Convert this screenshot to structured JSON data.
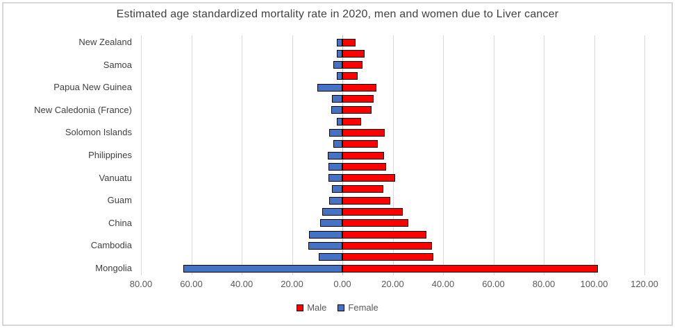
{
  "title": "Estimated age standardized mortality rate in 2020, men and women due to Liver cancer",
  "legend": {
    "male_label": "Male",
    "female_label": "Female"
  },
  "colors": {
    "male": "#fe0000",
    "female": "#4472c4",
    "bar_border": "#000000",
    "gridline": "#d9d9d9",
    "axis_line": "#c0c0c0",
    "label_text": "#595959",
    "title_text": "#404040",
    "chart_border": "#d6d6d6"
  },
  "chart_data": {
    "type": "bar",
    "orientation": "horizontal-pyramid",
    "title": "Estimated age standardized mortality rate in 2020, men and women due to Liver cancer",
    "note": "21 bar rows; Excel displays only every other category label; Female series plotted as negative (leftward) values; axis tick labels mirrored positive",
    "categories": [
      "New Zealand",
      "",
      "Samoa",
      "",
      "Papua New Guinea",
      "",
      "New Caledonia (France)",
      "",
      "Solomon Islands",
      "",
      "Philippines",
      "",
      "Vanuatu",
      "",
      "Guam",
      "",
      "China",
      "",
      "Cambodia",
      "",
      "Mongolia"
    ],
    "series": [
      {
        "name": "Male",
        "direction": "right",
        "values": [
          5.2,
          8.7,
          8.1,
          6.2,
          13.6,
          12.4,
          11.7,
          7.5,
          16.7,
          14.1,
          16.5,
          17.3,
          20.9,
          16.4,
          19.0,
          24.1,
          26.1,
          33.5,
          35.6,
          36.2,
          101.6
        ]
      },
      {
        "name": "Female",
        "direction": "left",
        "values": [
          2.3,
          2.2,
          3.7,
          2.3,
          10.0,
          4.2,
          4.4,
          2.2,
          5.2,
          3.6,
          5.9,
          5.5,
          5.4,
          4.1,
          5.3,
          8.0,
          8.7,
          13.2,
          13.6,
          9.5,
          63.2
        ]
      }
    ],
    "x_axis": {
      "min": -80,
      "max": 120,
      "tick_values": [
        -80,
        -60,
        -40,
        -20,
        0,
        20,
        40,
        60,
        80,
        100,
        120
      ],
      "tick_labels": [
        "80.00",
        "60.00",
        "40.00",
        "20.00",
        "0.00",
        "20.00",
        "40.00",
        "60.00",
        "80.00",
        "100.00",
        "120.00"
      ],
      "gridlines": true
    },
    "legend_position": "bottom"
  }
}
